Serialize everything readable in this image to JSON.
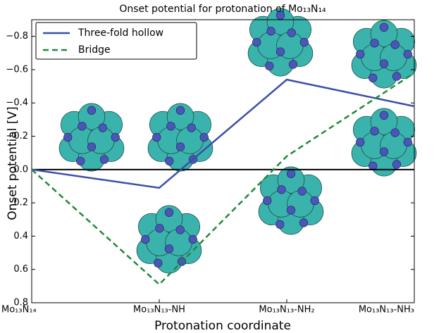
{
  "chart_data": {
    "type": "line",
    "title": "Onset potential for protonation of Mo₁₃N₁₄",
    "x_label": "Protonation coordinate",
    "y_label": "Onset potential  [V]",
    "categories": [
      "Mo₁₃N₁₄",
      "Mo₁₃N₁₃-NH",
      "Mo₁₃N₁₃-NH₂",
      "Mo₁₃N₁₃-NH₃"
    ],
    "series": [
      {
        "name": "Three-fold hollow",
        "color": "#3a4fa8",
        "dash": "solid",
        "values": [
          0.0,
          0.11,
          -0.54,
          -0.38
        ]
      },
      {
        "name": "Bridge",
        "color": "#1e8a3a",
        "dash": "dashed",
        "values": [
          0.0,
          0.69,
          -0.08,
          -0.58
        ]
      }
    ],
    "ylim": [
      0.8,
      -0.9
    ],
    "yticks": [
      {
        "value": -0.8,
        "label": "−0.8"
      },
      {
        "value": -0.6,
        "label": "−0.6"
      },
      {
        "value": -0.4,
        "label": "−0.4"
      },
      {
        "value": -0.2,
        "label": "−0.2"
      },
      {
        "value": 0,
        "label": "0.0"
      },
      0.2,
      0.4,
      0.6,
      0.8
    ],
    "legend": "upper left"
  }
}
